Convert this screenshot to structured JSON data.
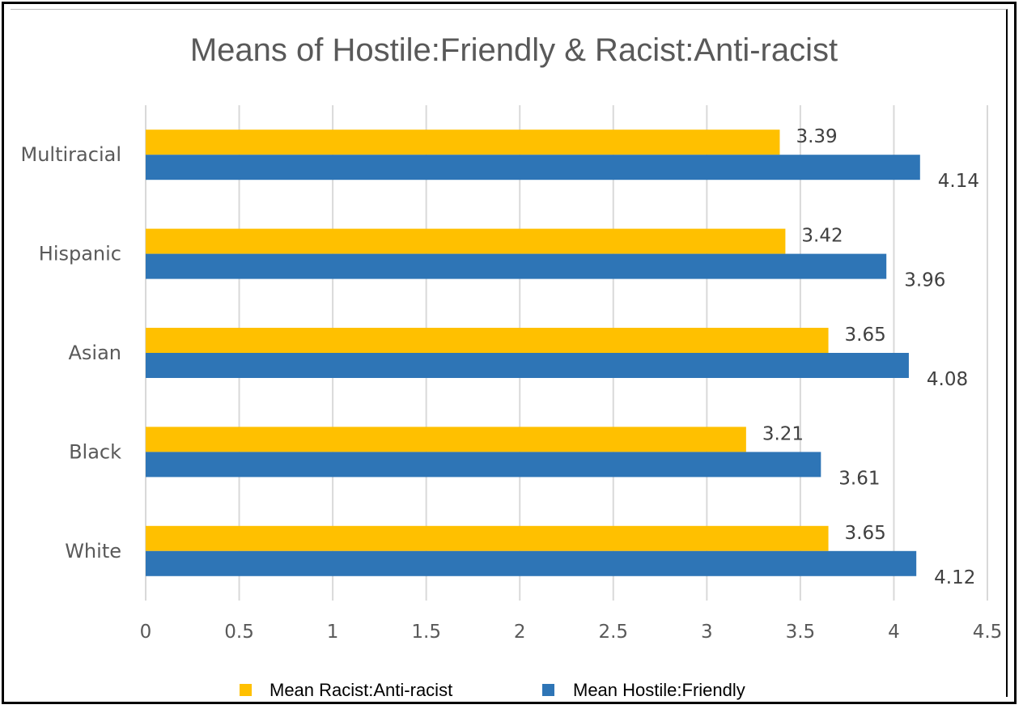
{
  "chart_data": {
    "type": "bar",
    "orientation": "horizontal",
    "title": "Means of Hostile:Friendly & Racist:Anti-racist",
    "categories": [
      "White",
      "Black",
      "Asian",
      "Hispanic",
      "Multiracial"
    ],
    "series": [
      {
        "name": "Mean Racist:Anti-racist",
        "color": "#FFC000",
        "values": [
          3.65,
          3.21,
          3.65,
          3.42,
          3.39
        ]
      },
      {
        "name": "Mean Hostile:Friendly",
        "color": "#2E75B6",
        "values": [
          4.12,
          3.61,
          4.08,
          3.96,
          4.14
        ]
      }
    ],
    "xlim": [
      0,
      4.5
    ],
    "xticks": [
      "0",
      "0.5",
      "1",
      "1.5",
      "2",
      "2.5",
      "3",
      "3.5",
      "4",
      "4.5"
    ],
    "xlabel": "",
    "ylabel": "",
    "grid": true,
    "legend_position": "bottom"
  }
}
